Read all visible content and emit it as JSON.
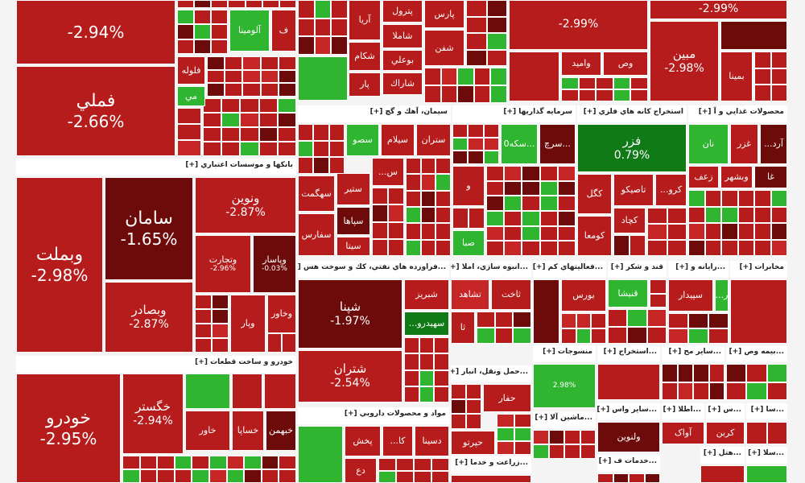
{
  "sectors": [
    {
      "tiles": [
        {
          "change": "-2.94%"
        },
        {
          "name": "فملي",
          "change": "-2.66%"
        },
        {
          "name": "آلومينا"
        },
        {
          "name": "ف"
        },
        {
          "name": "فلوله"
        },
        {
          "name": "مي"
        }
      ]
    },
    {
      "title": "بانكها و موسسات اعتباري [+]",
      "tiles": [
        {
          "name": "وبملت",
          "change": "-2.98%"
        },
        {
          "name": "سامان",
          "change": "-1.65%"
        },
        {
          "name": "وبصادر",
          "change": "-2.87%"
        },
        {
          "name": "ونوين",
          "change": "-2.87%"
        },
        {
          "name": "وتجارت",
          "change": "-2.96%"
        },
        {
          "name": "وپاسار",
          "change": "-0.03%"
        },
        {
          "name": "وخاور"
        },
        {
          "name": "وپار"
        }
      ]
    },
    {
      "title": "خودرو و ساخت قطعات [+]",
      "tiles": [
        {
          "name": "خودرو",
          "change": "-2.95%"
        },
        {
          "name": "خگستر",
          "change": "-2.94%"
        },
        {
          "name": "خساپا"
        },
        {
          "name": "خاور"
        },
        {
          "name": "خبهمن"
        }
      ]
    },
    {
      "tiles": [
        {
          "name": "آريا"
        },
        {
          "name": "پترول"
        },
        {
          "name": "پارس"
        },
        {
          "name": "شاملا"
        },
        {
          "name": "شكام"
        },
        {
          "name": "شفن"
        },
        {
          "name": "بوعلي"
        },
        {
          "name": "شاراك"
        },
        {
          "name": "پار"
        }
      ]
    },
    {
      "tiles": [
        {
          "change": "-2.99%"
        },
        {
          "name": "واميد"
        },
        {
          "name": "وص"
        },
        {
          "change": "-2.99%"
        },
        {
          "name": "مبين",
          "change": "-2.98%"
        },
        {
          "name": "بمينا"
        }
      ]
    },
    {
      "title": "سيمان، آهك و گچ [+]",
      "tiles": [
        {
          "name": "ستران"
        },
        {
          "name": "سيلام"
        },
        {
          "name": "سصو"
        },
        {
          "name": "سهگمت"
        },
        {
          "name": "ستير"
        },
        {
          "name": "سپاها"
        },
        {
          "name": "سيتا"
        },
        {
          "name": "سفارس"
        },
        {
          "name": "...س"
        }
      ]
    },
    {
      "title": "سرمايه گذاريها [+]",
      "tiles": [
        {
          "name": "سرچ..."
        },
        {
          "name": "سكه0..."
        },
        {
          "name": "و"
        },
        {
          "name": "صبا"
        }
      ]
    },
    {
      "title": "استخراج كانه هاي فلزي [+]",
      "tiles": [
        {
          "name": "فزر",
          "change": "0.79%"
        },
        {
          "name": "تاصيكو"
        },
        {
          "name": "كگل"
        },
        {
          "name": "كچاد"
        },
        {
          "name": "...كرو"
        },
        {
          "name": "كومعا"
        }
      ]
    },
    {
      "title": "محصولات غذايي و آ [+]",
      "tiles": [
        {
          "name": "نان"
        },
        {
          "name": "غزر"
        },
        {
          "name": "...آرد"
        },
        {
          "name": "وبشهر"
        },
        {
          "name": "زعف"
        },
        {
          "name": "غا"
        }
      ]
    },
    {
      "title": "...فراورده هاي نفتي، كك و سوخت هس [+]",
      "tiles": [
        {
          "name": "شپنا",
          "change": "-1.97%"
        },
        {
          "name": "شبريز"
        },
        {
          "name": "...سهيدرو"
        },
        {
          "name": "شتران",
          "change": "-2.54%"
        }
      ]
    },
    {
      "title": "...انبوه سازي، املا [+]",
      "tiles": [
        {
          "name": "تشاهد"
        },
        {
          "name": "ثاخت"
        },
        {
          "name": "ثا"
        }
      ]
    },
    {
      "title": "...فعاليتهاي كم [+]",
      "tiles": [
        {
          "name": "بورس"
        }
      ]
    },
    {
      "title": "قند و شكر [+]",
      "tiles": [
        {
          "name": "قنيشا"
        }
      ]
    },
    {
      "title": "...رايانه و [+]",
      "tiles": [
        {
          "name": "سپيدار"
        },
        {
          "name": "...ر"
        }
      ]
    },
    {
      "title": "مخابرات [+]",
      "tiles": []
    },
    {
      "title": "منسوجات [+]",
      "tiles": [
        {
          "change": "2.98%"
        }
      ]
    },
    {
      "title": "...استخراج [+]",
      "tiles": []
    },
    {
      "title": "...ساير مح [+]",
      "tiles": []
    },
    {
      "title": "...بيمه وص [+]",
      "tiles": []
    },
    {
      "title": "...حمل ونقل، انبار [+]",
      "tiles": [
        {
          "name": "حفار"
        },
        {
          "name": "حپرتو"
        }
      ]
    },
    {
      "title": "مواد و محصولات دارويي [+]",
      "tiles": [
        {
          "name": "دسينا"
        },
        {
          "name": "...كا"
        },
        {
          "name": "پخش"
        },
        {
          "name": "دع"
        }
      ]
    },
    {
      "title": "...ماشين آلا [+]",
      "tiles": []
    },
    {
      "title": "...ساير واس [+]",
      "tiles": [
        {
          "name": "ولنوين"
        }
      ]
    },
    {
      "title": "...اطلا [+]",
      "tiles": [
        {
          "name": "آواک"
        }
      ]
    },
    {
      "title": "...س [+]",
      "tiles": [
        {
          "name": "كربن"
        }
      ]
    },
    {
      "title": "...سا [+]",
      "tiles": []
    },
    {
      "title": "...زراعت و خدما [+]",
      "tiles": []
    },
    {
      "title": "...خدمات ف [+]",
      "tiles": []
    },
    {
      "title": "...هتل [+]",
      "tiles": []
    },
    {
      "title": "...سلا [+]",
      "tiles": []
    }
  ]
}
